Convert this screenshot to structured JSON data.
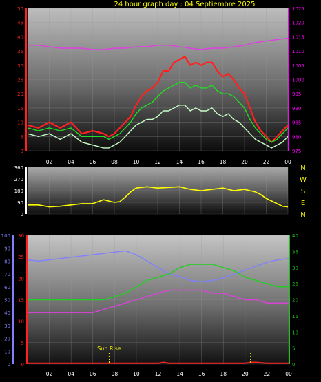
{
  "title": "24 hour graph day : 04 Septiembre 2025",
  "colors": {
    "title": "#ffff00",
    "wind_gust": "#ff2020",
    "wind_avg": "#22dd22",
    "wind_speed": "#c8ffc8",
    "pressure": "#e040e0",
    "wind_dir": "#ffff00",
    "humidity": "#8080ff",
    "temperature": "#20d020",
    "dewpoint": "#e040e0",
    "rain": "#ff2020",
    "left_axis_red": "#ff2020",
    "right_axis_magenta": "#ff00ff",
    "humidity_axis": "#8080ff",
    "right_axis_green": "#20c020",
    "sun_marker": "#ffff00"
  },
  "time_ticks": [
    "02",
    "04",
    "06",
    "08",
    "10",
    "12",
    "14",
    "16",
    "18",
    "20",
    "22",
    "00"
  ],
  "compass": [
    "N",
    "W",
    "S",
    "E",
    "N"
  ],
  "sun_label": "Sun Rise",
  "chart_data": [
    {
      "type": "line",
      "name": "wind",
      "x_range": [
        0,
        24
      ],
      "left_ticks": [
        "50",
        "45",
        "40",
        "35",
        "30",
        "25",
        "20",
        "15",
        "10",
        "5",
        "0"
      ],
      "right_ticks": [
        "1025",
        "1020",
        "1015",
        "1010",
        "1005",
        "1000",
        "995",
        "990",
        "985",
        "980",
        "975"
      ],
      "ylim_left": [
        0,
        50
      ],
      "ylim_right": [
        975,
        1025
      ],
      "grid": true,
      "series": [
        {
          "key": "wind_gust",
          "axis": "left",
          "x": [
            0,
            1,
            2,
            3,
            4,
            5,
            6,
            7,
            7.5,
            8,
            8.5,
            9,
            9.5,
            10,
            10.5,
            11,
            11.5,
            12,
            12.5,
            13,
            13.5,
            14,
            14.5,
            15,
            15.5,
            16,
            16.5,
            17,
            17.5,
            18,
            18.5,
            19,
            19.5,
            20,
            20.5,
            21,
            21.5,
            22,
            22.5,
            23,
            23.5,
            24
          ],
          "values": [
            9,
            8,
            10,
            8,
            10,
            6,
            7,
            6,
            5,
            6,
            8,
            10,
            12,
            16,
            19,
            21,
            22,
            24,
            28,
            28,
            31,
            32,
            33,
            30,
            31,
            30,
            31,
            31,
            28,
            26,
            27,
            25,
            22,
            20,
            15,
            10,
            7,
            5,
            3,
            5,
            7,
            9
          ]
        },
        {
          "key": "wind_avg",
          "axis": "left",
          "x": [
            0,
            1,
            2,
            3,
            4,
            5,
            6,
            7,
            7.5,
            8,
            8.5,
            9,
            9.5,
            10,
            10.5,
            11,
            11.5,
            12,
            12.5,
            13,
            13.5,
            14,
            14.5,
            15,
            15.5,
            16,
            16.5,
            17,
            17.5,
            18,
            18.5,
            19,
            19.5,
            20,
            20.5,
            21,
            21.5,
            22,
            22.5,
            23,
            23.5,
            24
          ],
          "values": [
            8,
            7,
            8,
            7,
            8,
            5,
            5,
            5,
            4,
            5,
            6,
            8,
            10,
            13,
            15,
            16,
            17,
            19,
            21,
            22,
            23,
            24,
            24,
            22,
            23,
            22,
            22,
            23,
            21,
            20,
            20,
            19,
            17,
            15,
            11,
            8,
            6,
            4,
            3,
            4,
            6,
            8
          ]
        },
        {
          "key": "wind_speed",
          "axis": "left",
          "x": [
            0,
            1,
            2,
            3,
            4,
            5,
            6,
            7,
            7.5,
            8,
            8.5,
            9,
            9.5,
            10,
            10.5,
            11,
            11.5,
            12,
            12.5,
            13,
            13.5,
            14,
            14.5,
            15,
            15.5,
            16,
            16.5,
            17,
            17.5,
            18,
            18.5,
            19,
            19.5,
            20,
            20.5,
            21,
            21.5,
            22,
            22.5,
            23,
            23.5,
            24
          ],
          "values": [
            6,
            5,
            6,
            4,
            6,
            3,
            2,
            1,
            1,
            2,
            3,
            5,
            7,
            9,
            10,
            11,
            11,
            12,
            14,
            14,
            15,
            16,
            16,
            14,
            15,
            14,
            14,
            15,
            13,
            12,
            13,
            11,
            10,
            8,
            6,
            4,
            3,
            2,
            1,
            2,
            3,
            5
          ]
        },
        {
          "key": "pressure",
          "axis": "right",
          "x": [
            0,
            1,
            2,
            3,
            4,
            5,
            6,
            7,
            8,
            9,
            10,
            11,
            12,
            13,
            14,
            15,
            16,
            17,
            18,
            19,
            20,
            21,
            22,
            23,
            24
          ],
          "values": [
            1012,
            1012,
            1011.5,
            1011,
            1011,
            1011,
            1010.5,
            1010.5,
            1011,
            1011,
            1011.5,
            1011.5,
            1012,
            1012,
            1011.5,
            1011,
            1010.5,
            1011,
            1011,
            1011.5,
            1012,
            1013,
            1013.5,
            1014,
            1014.5
          ]
        }
      ]
    },
    {
      "type": "line",
      "name": "wind_direction",
      "x_range": [
        0,
        24
      ],
      "left_ticks": [
        "360",
        "270",
        "180",
        "90",
        "0"
      ],
      "ylim_left": [
        0,
        360
      ],
      "grid": true,
      "series": [
        {
          "key": "wind_dir",
          "axis": "left",
          "x": [
            0,
            1,
            2,
            3,
            4,
            5,
            6,
            7,
            7.5,
            8,
            8.5,
            9,
            9.5,
            10,
            11,
            12,
            13,
            14,
            15,
            16,
            17,
            18,
            19,
            20,
            21,
            21.5,
            22,
            22.5,
            23,
            23.5,
            24
          ],
          "values": [
            70,
            70,
            55,
            60,
            70,
            80,
            80,
            110,
            100,
            90,
            95,
            130,
            170,
            200,
            210,
            200,
            205,
            210,
            190,
            180,
            190,
            200,
            180,
            190,
            170,
            150,
            120,
            100,
            80,
            60,
            55
          ]
        }
      ]
    },
    {
      "type": "line",
      "name": "temp_humidity_rain",
      "x_range": [
        0,
        24
      ],
      "humidity_ticks": [
        "100",
        "90",
        "80",
        "70",
        "60",
        "50",
        "40",
        "30",
        "20",
        "10",
        "0"
      ],
      "left_ticks": [
        "30",
        "25",
        "20",
        "15",
        "10",
        "5",
        "0"
      ],
      "right_ticks": [
        "40",
        "35",
        "30",
        "25",
        "20",
        "15",
        "10",
        "5",
        "0"
      ],
      "ylim_humidity": [
        0,
        100
      ],
      "ylim_left": [
        0,
        30
      ],
      "ylim_right": [
        0,
        40
      ],
      "grid": true,
      "sun_markers": [
        7.5,
        20.5
      ],
      "series": [
        {
          "key": "humidity",
          "axis": "humidity",
          "x": [
            0,
            1,
            2,
            3,
            4,
            5,
            6,
            7,
            8,
            9,
            10,
            11,
            12,
            13,
            14,
            15,
            16,
            17,
            18,
            19,
            20,
            21,
            22,
            23,
            24
          ],
          "values": [
            81,
            80,
            81,
            82,
            83,
            84,
            85,
            86,
            87,
            88,
            85,
            80,
            75,
            70,
            68,
            65,
            64,
            65,
            67,
            70,
            73,
            76,
            79,
            81,
            82
          ]
        },
        {
          "key": "temperature",
          "axis": "right",
          "x": [
            0,
            1,
            2,
            3,
            4,
            5,
            6,
            7,
            8,
            9,
            10,
            11,
            12,
            13,
            14,
            15,
            16,
            17,
            18,
            19,
            20,
            21,
            22,
            23,
            24
          ],
          "values": [
            20,
            20,
            20,
            20,
            20,
            20,
            20,
            20,
            21,
            22,
            24,
            26,
            27,
            28,
            30,
            31,
            31,
            31,
            30,
            29,
            27,
            26,
            25,
            24,
            24
          ]
        },
        {
          "key": "dewpoint",
          "axis": "right",
          "x": [
            0,
            1,
            2,
            3,
            4,
            5,
            6,
            7,
            8,
            9,
            10,
            11,
            12,
            13,
            14,
            15,
            16,
            17,
            18,
            19,
            20,
            21,
            22,
            23,
            24
          ],
          "values": [
            16,
            16,
            16,
            16,
            16,
            16,
            16,
            17,
            18,
            19,
            20,
            21,
            22,
            23,
            23,
            23,
            23,
            22,
            22,
            21,
            20,
            20,
            19,
            19,
            19
          ]
        },
        {
          "key": "rain",
          "axis": "left",
          "x": [
            0,
            2,
            4,
            6,
            8,
            10,
            12,
            12.5,
            13,
            14,
            16,
            18,
            20,
            20.5,
            21,
            22,
            22.5,
            23,
            24
          ],
          "values": [
            0.2,
            0.2,
            0.2,
            0.2,
            0.2,
            0.2,
            0.2,
            0.4,
            0.2,
            0.2,
            0.2,
            0.2,
            0.2,
            0.4,
            0.4,
            0.2,
            0.2,
            0.2,
            0.2
          ]
        }
      ]
    }
  ]
}
